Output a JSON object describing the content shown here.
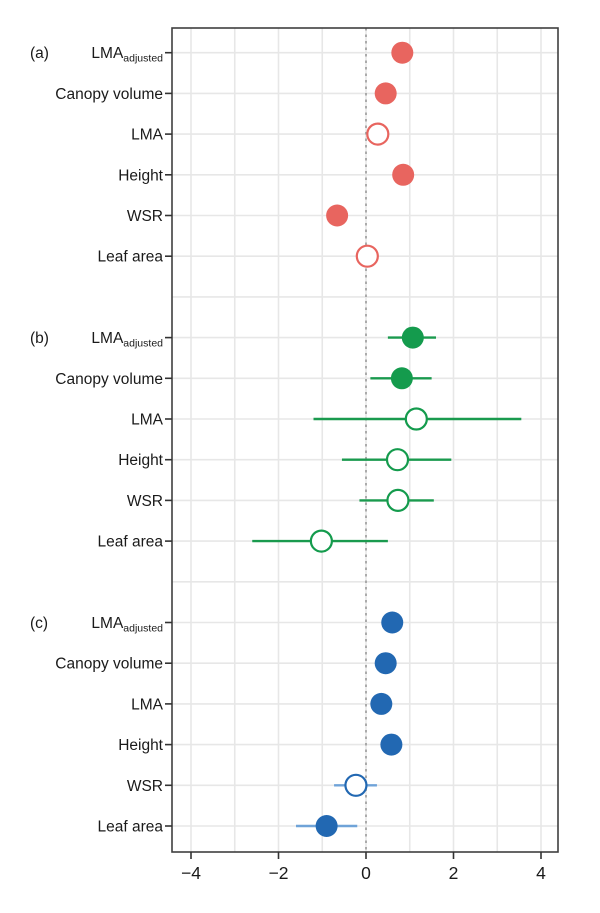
{
  "figure": {
    "background": "#ffffff",
    "text_color": "#1a1a1a",
    "grid_color": "#e7e7e7",
    "border_color": "#3f3f3f",
    "zero_line_color": "#9a9a9a",
    "tick_color": "#333333"
  },
  "chart_data": {
    "type": "scatter",
    "subtype": "dot-plot-with-error-bars",
    "title": "",
    "xlabel": "",
    "ylabel": "",
    "xlim": [
      -4.43,
      4.39
    ],
    "x_ticks": [
      -4,
      -2,
      0,
      2,
      4
    ],
    "x_tick_labels": [
      "−4",
      "−2",
      "0",
      "2",
      "4"
    ],
    "grid": "on, light gray, every 1 unit vertical and every row horizontal",
    "zero_reference_line": {
      "x": 0,
      "style": "dashed",
      "color": "#9a9a9a"
    },
    "legend": "none",
    "panels": [
      {
        "label": "(a)",
        "color": "#e8655f",
        "bar_color": "#e8655f",
        "rows": [
          {
            "label": "LMA",
            "sub": "adjusted",
            "value": 0.83,
            "ci": null,
            "filled": true
          },
          {
            "label": "Canopy volume",
            "sub": "",
            "value": 0.45,
            "ci": null,
            "filled": true
          },
          {
            "label": "LMA",
            "sub": "",
            "value": 0.27,
            "ci": null,
            "filled": false
          },
          {
            "label": "Height",
            "sub": "",
            "value": 0.85,
            "ci": null,
            "filled": true
          },
          {
            "label": "WSR",
            "sub": "",
            "value": -0.66,
            "ci": null,
            "filled": true
          },
          {
            "label": "Leaf area",
            "sub": "",
            "value": 0.03,
            "ci": null,
            "filled": false
          }
        ]
      },
      {
        "label": "(b)",
        "color": "#149b4d",
        "bar_color": "#1a9a4e",
        "rows": [
          {
            "label": "LMA",
            "sub": "adjusted",
            "value": 1.07,
            "ci": [
              0.5,
              1.6
            ],
            "filled": true
          },
          {
            "label": "Canopy volume",
            "sub": "",
            "value": 0.82,
            "ci": [
              0.1,
              1.5
            ],
            "filled": true
          },
          {
            "label": "LMA",
            "sub": "",
            "value": 1.15,
            "ci": [
              -1.2,
              3.55
            ],
            "filled": false
          },
          {
            "label": "Height",
            "sub": "",
            "value": 0.72,
            "ci": [
              -0.55,
              1.95
            ],
            "filled": false
          },
          {
            "label": "WSR",
            "sub": "",
            "value": 0.73,
            "ci": [
              -0.15,
              1.55
            ],
            "filled": false
          },
          {
            "label": "Leaf area",
            "sub": "",
            "value": -1.02,
            "ci": [
              -2.6,
              0.5
            ],
            "filled": false
          }
        ]
      },
      {
        "label": "(c)",
        "color": "#2268b2",
        "bar_color": "#6fa3d8",
        "rows": [
          {
            "label": "LMA",
            "sub": "adjusted",
            "value": 0.6,
            "ci": null,
            "filled": true
          },
          {
            "label": "Canopy volume",
            "sub": "",
            "value": 0.45,
            "ci": null,
            "filled": true
          },
          {
            "label": "LMA",
            "sub": "",
            "value": 0.35,
            "ci": null,
            "filled": true
          },
          {
            "label": "Height",
            "sub": "",
            "value": 0.58,
            "ci": null,
            "filled": true
          },
          {
            "label": "WSR",
            "sub": "",
            "value": -0.23,
            "ci": [
              -0.73,
              0.25
            ],
            "filled": false
          },
          {
            "label": "Leaf area",
            "sub": "",
            "value": -0.9,
            "ci": [
              -1.6,
              -0.2
            ],
            "filled": true
          }
        ]
      }
    ]
  }
}
